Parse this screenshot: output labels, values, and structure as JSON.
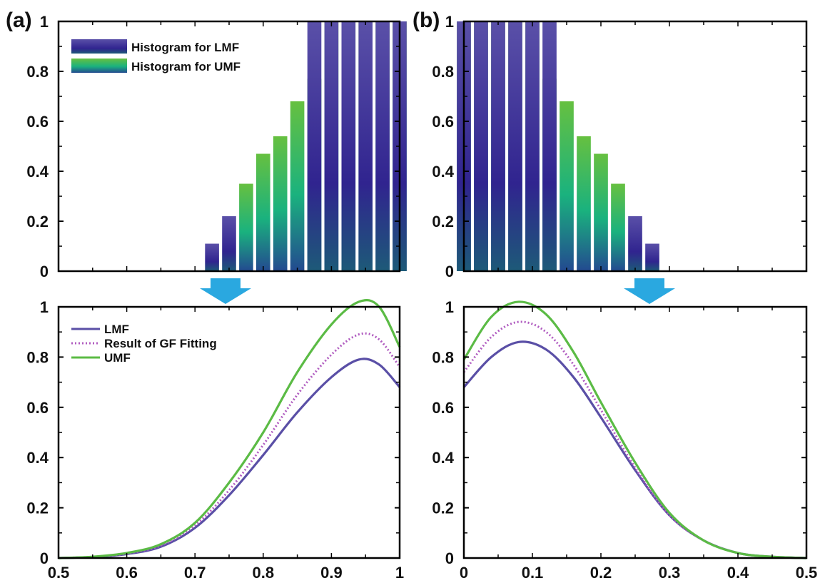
{
  "colors": {
    "lmf": "#5a4fa6",
    "umf": "#5bbb45",
    "gf": "#b05cc0",
    "arrow": "#2aa8e0",
    "lmf_grad": [
      "#5a50a8",
      "#30248f",
      "#1d5a78"
    ],
    "umf_grad": [
      "#66c040",
      "#1ab27e",
      "#234a90"
    ]
  },
  "chart_data": [
    {
      "panel": "(a)",
      "type": "bar",
      "title": "",
      "xlabel": "",
      "ylabel": "",
      "xlim": [
        0.5,
        1.0
      ],
      "ylim": [
        0,
        1
      ],
      "yticks": [
        "0",
        "0.2",
        "0.4",
        "0.6",
        "0.8",
        "1"
      ],
      "legend": {
        "placement": "top-left",
        "entries": [
          "Histogram for LMF",
          "Histogram for UMF"
        ]
      },
      "series": [
        {
          "name": "Histogram for LMF",
          "x": [
            0.725,
            0.75,
            0.875,
            0.9,
            0.925,
            0.95,
            0.975,
            1.0
          ],
          "values": [
            0.11,
            0.22,
            1,
            1,
            1,
            1,
            1,
            1
          ]
        },
        {
          "name": "Histogram for UMF",
          "x": [
            0.775,
            0.8,
            0.825,
            0.85,
            0.875,
            0.9,
            0.925,
            0.95,
            0.975,
            1.0
          ],
          "values": [
            0.35,
            0.47,
            0.54,
            0.68,
            0.77,
            1,
            1,
            1,
            1,
            1
          ]
        }
      ]
    },
    {
      "panel": "(b)",
      "type": "bar",
      "title": "",
      "xlabel": "",
      "ylabel": "",
      "xlim": [
        0,
        0.5
      ],
      "ylim": [
        0,
        1
      ],
      "yticks": [
        "0",
        "0.2",
        "0.4",
        "0.6",
        "0.8",
        "1"
      ],
      "series": [
        {
          "name": "Histogram for LMF",
          "x": [
            0.0,
            0.025,
            0.05,
            0.075,
            0.1,
            0.125,
            0.25,
            0.275
          ],
          "values": [
            1,
            1,
            1,
            1,
            1,
            1,
            0.22,
            0.11
          ]
        },
        {
          "name": "Histogram for UMF",
          "x": [
            0.0,
            0.025,
            0.05,
            0.075,
            0.1,
            0.125,
            0.15,
            0.175,
            0.2,
            0.225
          ],
          "values": [
            1,
            1,
            1,
            1,
            1,
            0.77,
            0.68,
            0.54,
            0.47,
            0.35
          ]
        }
      ]
    },
    {
      "type": "line",
      "title": "",
      "xlabel": "",
      "ylabel": "",
      "xlim": [
        0.5,
        1.0
      ],
      "ylim": [
        0,
        1.0
      ],
      "xticks": [
        "0.5",
        "0.6",
        "0.7",
        "0.8",
        "0.9",
        "1"
      ],
      "yticks": [
        "0",
        "0.2",
        "0.4",
        "0.6",
        "0.8",
        "1"
      ],
      "legend": {
        "placement": "top-left",
        "entries": [
          "LMF",
          "Result of GF Fitting",
          "UMF"
        ]
      },
      "series": [
        {
          "name": "LMF",
          "style": "solid",
          "x": [
            0.5,
            0.55,
            0.6,
            0.65,
            0.7,
            0.75,
            0.8,
            0.85,
            0.9,
            0.94,
            0.97,
            1.0
          ],
          "values": [
            0.0,
            0.004,
            0.016,
            0.045,
            0.12,
            0.25,
            0.41,
            0.58,
            0.72,
            0.79,
            0.77,
            0.68
          ]
        },
        {
          "name": "Result of GF Fitting",
          "style": "dotted",
          "x": [
            0.5,
            0.55,
            0.6,
            0.65,
            0.7,
            0.75,
            0.8,
            0.85,
            0.9,
            0.94,
            0.97,
            1.0
          ],
          "values": [
            0.0,
            0.005,
            0.018,
            0.05,
            0.13,
            0.27,
            0.45,
            0.65,
            0.81,
            0.89,
            0.87,
            0.76
          ]
        },
        {
          "name": "UMF",
          "style": "solid",
          "x": [
            0.5,
            0.55,
            0.6,
            0.65,
            0.7,
            0.75,
            0.8,
            0.85,
            0.9,
            0.94,
            0.97,
            1.0
          ],
          "values": [
            0.0,
            0.005,
            0.02,
            0.055,
            0.14,
            0.3,
            0.5,
            0.74,
            0.93,
            1.02,
            1.0,
            0.84
          ]
        }
      ]
    },
    {
      "type": "line",
      "title": "",
      "xlabel": "",
      "ylabel": "",
      "xlim": [
        0,
        0.5
      ],
      "ylim": [
        0,
        1.0
      ],
      "xticks": [
        "0",
        "0.1",
        "0.2",
        "0.3",
        "0.4",
        "0.5"
      ],
      "yticks": [
        "0",
        "0.2",
        "0.4",
        "0.6",
        "0.8",
        "1"
      ],
      "series": [
        {
          "name": "LMF",
          "style": "solid",
          "x": [
            0.0,
            0.04,
            0.08,
            0.12,
            0.16,
            0.2,
            0.25,
            0.3,
            0.35,
            0.4,
            0.45,
            0.5
          ],
          "values": [
            0.68,
            0.8,
            0.86,
            0.83,
            0.72,
            0.56,
            0.35,
            0.17,
            0.07,
            0.02,
            0.005,
            0.0
          ]
        },
        {
          "name": "Result of GF Fitting",
          "style": "dotted",
          "x": [
            0.0,
            0.04,
            0.08,
            0.12,
            0.16,
            0.2,
            0.25,
            0.3,
            0.35,
            0.4,
            0.45,
            0.5
          ],
          "values": [
            0.74,
            0.88,
            0.94,
            0.9,
            0.77,
            0.59,
            0.36,
            0.17,
            0.07,
            0.02,
            0.005,
            0.0
          ]
        },
        {
          "name": "UMF",
          "style": "solid",
          "x": [
            0.0,
            0.04,
            0.08,
            0.12,
            0.16,
            0.2,
            0.25,
            0.3,
            0.35,
            0.4,
            0.45,
            0.5
          ],
          "values": [
            0.79,
            0.96,
            1.02,
            0.97,
            0.82,
            0.62,
            0.38,
            0.18,
            0.07,
            0.02,
            0.005,
            0.0
          ]
        }
      ]
    }
  ]
}
